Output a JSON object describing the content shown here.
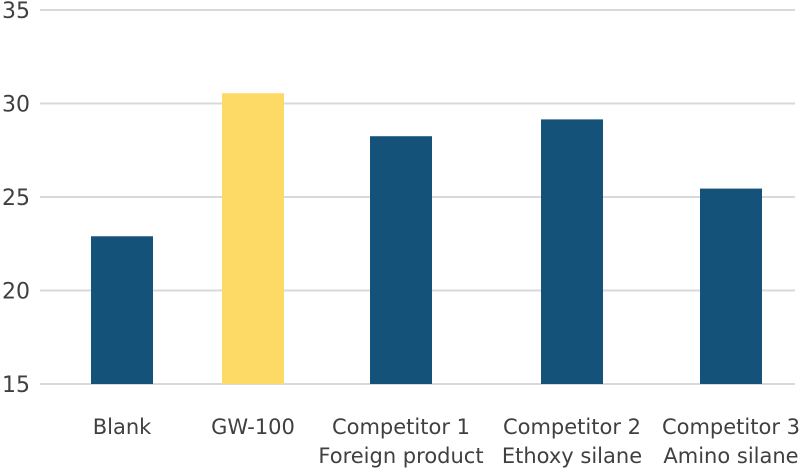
{
  "chart_data": {
    "type": "bar",
    "categories": [
      [
        "Blank"
      ],
      [
        "GW-100"
      ],
      [
        "Competitor 1",
        "Foreign product"
      ],
      [
        "Competitor 2",
        "Ethoxy silane"
      ],
      [
        "Competitor 3",
        "Amino silane"
      ]
    ],
    "values": [
      22.9,
      30.55,
      28.25,
      29.15,
      25.45
    ],
    "colors": [
      "#14527a",
      "#fdd966",
      "#14527a",
      "#14527a",
      "#14527a"
    ],
    "ylim": [
      15,
      35
    ],
    "yticks": [
      15,
      20,
      25,
      30,
      35
    ],
    "title": "",
    "xlabel": "",
    "ylabel": "",
    "grid": true,
    "legend": "none"
  }
}
